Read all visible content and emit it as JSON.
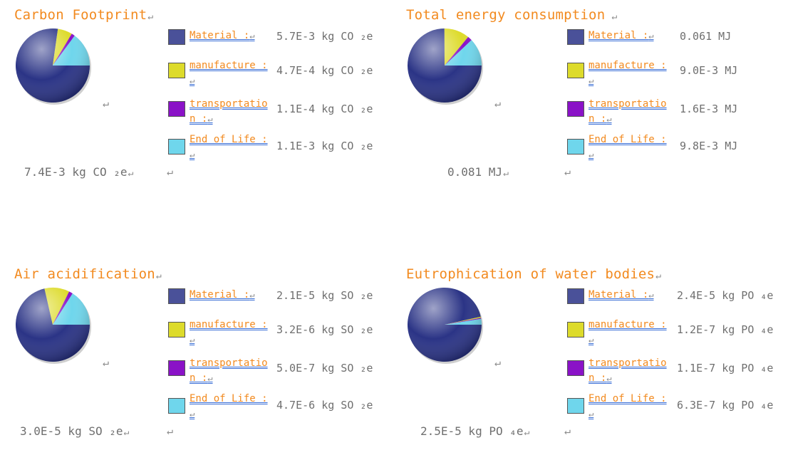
{
  "colors": {
    "material": "#4a5199",
    "manufacture": "#dddb2b",
    "transportation": "#8a12c7",
    "end_of_life": "#6fd6ec"
  },
  "panels": [
    {
      "title": "Carbon Footprint",
      "total": "7.4E-3 kg CO ₂e",
      "slices": [
        0.0057,
        0.00047,
        0.00011,
        0.0011
      ],
      "rows": [
        {
          "label": "Material :",
          "value": "5.7E-3 kg CO ₂e"
        },
        {
          "label": "manufacture :",
          "value": "4.7E-4 kg CO ₂e"
        },
        {
          "label": "transportation :",
          "value": "1.1E-4 kg CO ₂e"
        },
        {
          "label": "End of Life :",
          "value": "1.1E-3 kg CO ₂e"
        }
      ]
    },
    {
      "title": "Total energy consumption",
      "total": "0.081 MJ",
      "slices": [
        0.061,
        0.009,
        0.0016,
        0.0098
      ],
      "rows": [
        {
          "label": "Material :",
          "value": "0.061 MJ"
        },
        {
          "label": "manufacture :",
          "value": "9.0E-3 MJ"
        },
        {
          "label": "transportation :",
          "value": "1.6E-3 MJ"
        },
        {
          "label": "End of Life :",
          "value": "9.8E-3 MJ"
        }
      ]
    },
    {
      "title": "Air acidification",
      "total": "3.0E-5 kg SO ₂e",
      "slices": [
        2.1e-05,
        3.2e-06,
        5e-07,
        4.7e-06
      ],
      "rows": [
        {
          "label": "Material :",
          "value": "2.1E-5 kg SO ₂e"
        },
        {
          "label": "manufacture :",
          "value": "3.2E-6 kg SO ₂e"
        },
        {
          "label": "transportation :",
          "value": "5.0E-7 kg SO ₂e"
        },
        {
          "label": "End of Life :",
          "value": "4.7E-6 kg SO ₂e"
        }
      ]
    },
    {
      "title": "Eutrophication of water bodies",
      "total": "2.5E-5 kg PO ₄e",
      "slices": [
        2.4e-05,
        1.2e-07,
        1.1e-07,
        6.3e-07
      ],
      "rows": [
        {
          "label": "Material :",
          "value": "2.4E-5 kg PO ₄e"
        },
        {
          "label": "manufacture :",
          "value": "1.2E-7 kg PO ₄e"
        },
        {
          "label": "transportation :",
          "value": "1.1E-7 kg PO ₄e"
        },
        {
          "label": "End of Life :",
          "value": "6.3E-7 kg PO ₄e"
        }
      ]
    }
  ]
}
